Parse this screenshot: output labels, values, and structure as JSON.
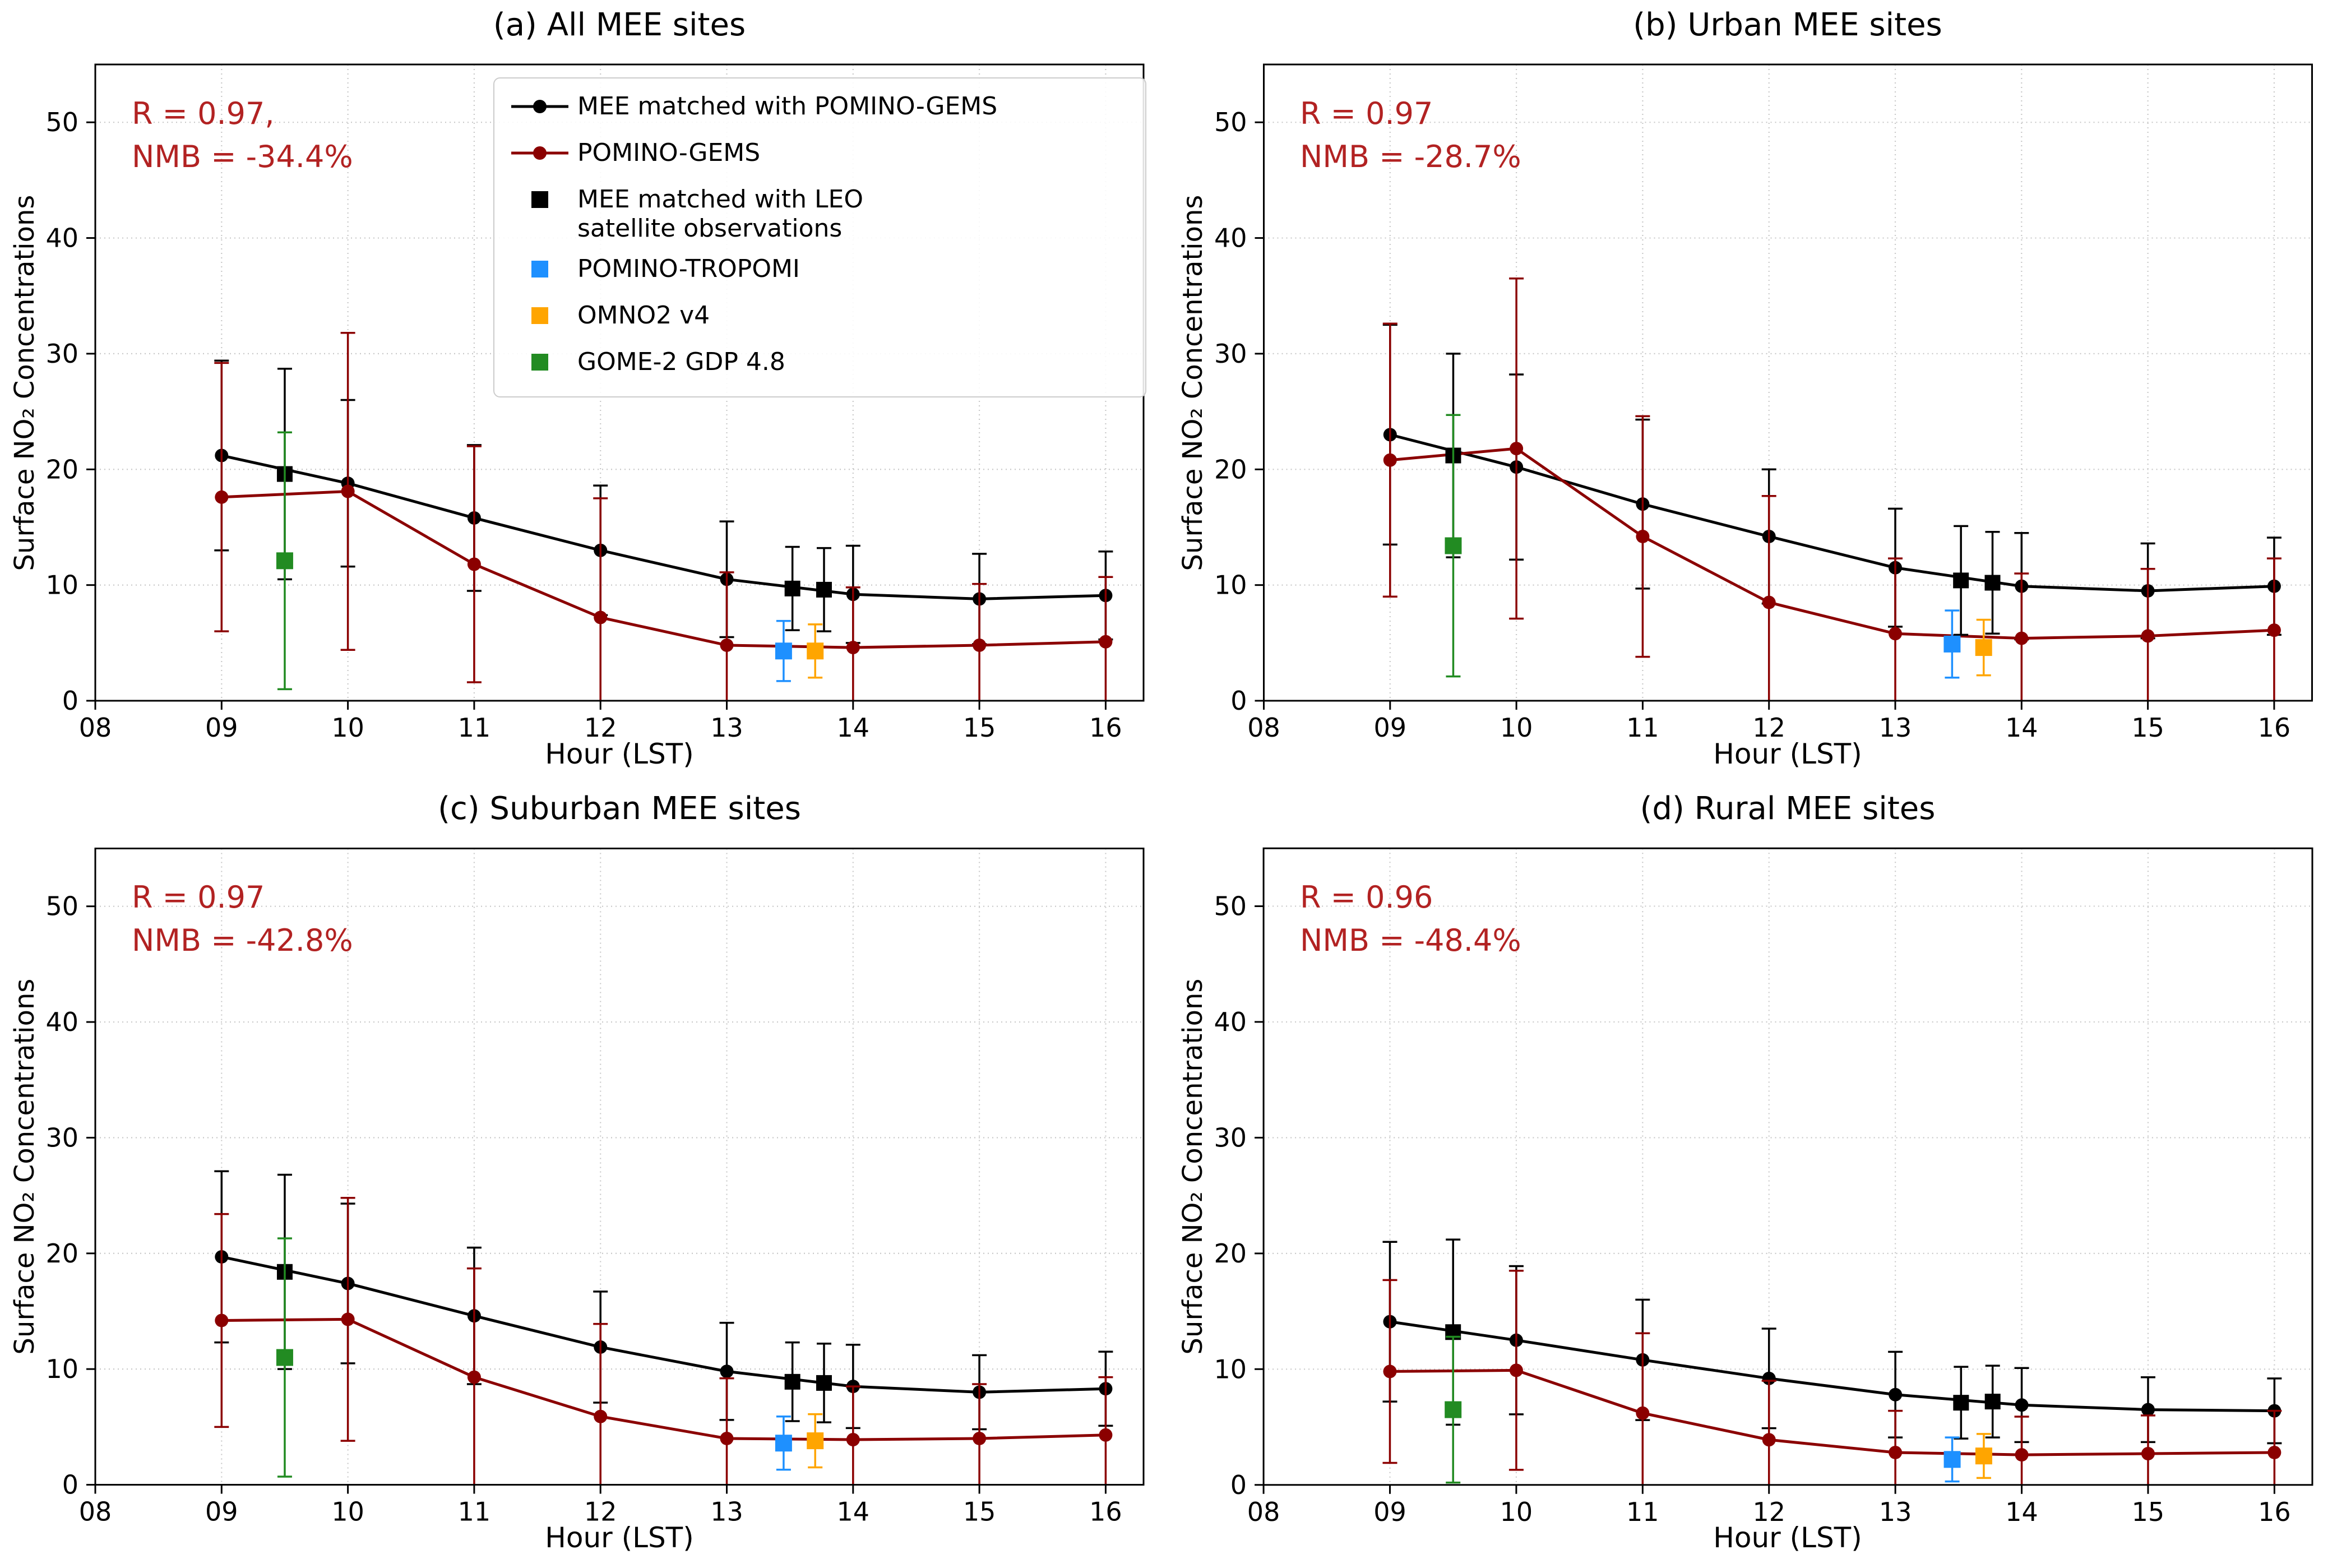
{
  "colors": {
    "annotation_red": "#B22222",
    "grid": "#C8C8C8",
    "axes": "#000000",
    "background": "#FFFFFF"
  },
  "axes": {
    "xlabel": "Hour (LST)",
    "ylabel": "Surface NO₂ Concentrations",
    "xlim": [
      8,
      16.3
    ],
    "ylim": [
      0,
      55
    ],
    "xtick_values": [
      8,
      9,
      10,
      11,
      12,
      13,
      14,
      15,
      16
    ],
    "xtick_labels": [
      "08",
      "09",
      "10",
      "11",
      "12",
      "13",
      "14",
      "15",
      "16"
    ],
    "ytick_values": [
      0,
      10,
      20,
      30,
      40,
      50
    ],
    "grid": true
  },
  "legend": {
    "position": "upper area of panel (a)",
    "items": [
      {
        "lines": [
          "MEE matched with POMINO-GEMS"
        ],
        "marker": "line-circle",
        "color": "#000000"
      },
      {
        "lines": [
          "POMINO-GEMS"
        ],
        "marker": "line-circle",
        "color": "#8B0000"
      },
      {
        "lines": [
          "MEE matched with LEO",
          "satellite observations"
        ],
        "marker": "square",
        "color": "#000000"
      },
      {
        "lines": [
          "POMINO-TROPOMI"
        ],
        "marker": "square",
        "color": "#1E90FF"
      },
      {
        "lines": [
          "OMNO2 v4"
        ],
        "marker": "square",
        "color": "#FFA500"
      },
      {
        "lines": [
          "GOME-2 GDP 4.8"
        ],
        "marker": "square",
        "color": "#228B22"
      }
    ]
  },
  "chart_data": [
    {
      "type": "line",
      "title": "(a) All MEE sites",
      "annotation": [
        "R = 0.97,",
        "NMB = -34.4%"
      ],
      "xlabel": "Hour (LST)",
      "ylabel": "Surface NO2 Concentrations",
      "xlim": [
        8,
        16.3
      ],
      "ylim": [
        0,
        55
      ],
      "series": [
        {
          "name": "MEE matched with POMINO-GEMS",
          "color": "#000000",
          "marker": "circle",
          "line": true,
          "msize": 12,
          "x": [
            9,
            10,
            11,
            12,
            13,
            14,
            15,
            16
          ],
          "y": [
            21.2,
            18.8,
            15.8,
            13.0,
            10.5,
            9.2,
            8.8,
            9.1
          ],
          "yerr": [
            8.2,
            7.2,
            6.3,
            5.6,
            5.0,
            4.2,
            3.9,
            3.8
          ]
        },
        {
          "name": "POMINO-GEMS",
          "color": "#8B0000",
          "marker": "circle",
          "line": true,
          "msize": 12,
          "x": [
            9,
            10,
            11,
            12,
            13,
            14,
            15,
            16
          ],
          "y": [
            17.6,
            18.1,
            11.8,
            7.2,
            4.8,
            4.6,
            4.8,
            5.1
          ],
          "yerr": [
            11.6,
            13.7,
            10.2,
            10.3,
            6.3,
            5.2,
            5.3,
            5.6
          ]
        },
        {
          "name": "MEE matched with LEO satellite observations",
          "color": "#000000",
          "marker": "square",
          "line": false,
          "msize": 14,
          "x": [
            9.5,
            13.52,
            13.77
          ],
          "y": [
            19.6,
            9.7,
            9.6
          ],
          "yerr": [
            9.1,
            3.6,
            3.6
          ]
        },
        {
          "name": "GOME-2 GDP 4.8",
          "color": "#228B22",
          "marker": "square",
          "line": false,
          "msize": 15,
          "x": [
            9.5
          ],
          "y": [
            12.1
          ],
          "yerr": [
            11.1
          ]
        },
        {
          "name": "POMINO-TROPOMI",
          "color": "#1E90FF",
          "marker": "square",
          "line": false,
          "msize": 15,
          "x": [
            13.45
          ],
          "y": [
            4.3
          ],
          "yerr": [
            2.6
          ]
        },
        {
          "name": "OMNO2 v4",
          "color": "#FFA500",
          "marker": "square",
          "line": false,
          "msize": 15,
          "x": [
            13.7
          ],
          "y": [
            4.3
          ],
          "yerr": [
            2.3
          ]
        }
      ]
    },
    {
      "type": "line",
      "title": "(b) Urban MEE sites",
      "annotation": [
        "R = 0.97",
        "NMB = -28.7%"
      ],
      "xlabel": "Hour (LST)",
      "ylabel": "Surface NO2 Concentrations",
      "xlim": [
        8,
        16.3
      ],
      "ylim": [
        0,
        55
      ],
      "series": [
        {
          "name": "MEE matched with POMINO-GEMS",
          "color": "#000000",
          "marker": "circle",
          "line": true,
          "msize": 12,
          "x": [
            9,
            10,
            11,
            12,
            13,
            14,
            15,
            16
          ],
          "y": [
            23.0,
            20.2,
            17.0,
            14.2,
            11.5,
            9.9,
            9.5,
            9.9
          ],
          "yerr": [
            9.5,
            8.0,
            7.3,
            5.8,
            5.1,
            4.6,
            4.1,
            4.2
          ]
        },
        {
          "name": "POMINO-GEMS",
          "color": "#8B0000",
          "marker": "circle",
          "line": true,
          "msize": 12,
          "x": [
            9,
            10,
            11,
            12,
            13,
            14,
            15,
            16
          ],
          "y": [
            20.8,
            21.8,
            14.2,
            8.5,
            5.8,
            5.4,
            5.6,
            6.1
          ],
          "yerr": [
            11.8,
            14.7,
            10.4,
            9.2,
            6.5,
            5.6,
            5.8,
            6.2
          ]
        },
        {
          "name": "MEE matched with LEO satellite observations",
          "color": "#000000",
          "marker": "square",
          "line": false,
          "msize": 14,
          "x": [
            9.5,
            13.52,
            13.77
          ],
          "y": [
            21.2,
            10.4,
            10.2
          ],
          "yerr": [
            8.8,
            4.7,
            4.4
          ]
        },
        {
          "name": "GOME-2 GDP 4.8",
          "color": "#228B22",
          "marker": "square",
          "line": false,
          "msize": 15,
          "x": [
            9.5
          ],
          "y": [
            13.4
          ],
          "yerr": [
            11.3
          ]
        },
        {
          "name": "POMINO-TROPOMI",
          "color": "#1E90FF",
          "marker": "square",
          "line": false,
          "msize": 15,
          "x": [
            13.45
          ],
          "y": [
            4.9
          ],
          "yerr": [
            2.9
          ]
        },
        {
          "name": "OMNO2 v4",
          "color": "#FFA500",
          "marker": "square",
          "line": false,
          "msize": 15,
          "x": [
            13.7
          ],
          "y": [
            4.6
          ],
          "yerr": [
            2.4
          ]
        }
      ]
    },
    {
      "type": "line",
      "title": "(c) Suburban MEE sites",
      "annotation": [
        "R = 0.97",
        "NMB = -42.8%"
      ],
      "xlabel": "Hour (LST)",
      "ylabel": "Surface NO2 Concentrations",
      "xlim": [
        8,
        16.3
      ],
      "ylim": [
        0,
        55
      ],
      "series": [
        {
          "name": "MEE matched with POMINO-GEMS",
          "color": "#000000",
          "marker": "circle",
          "line": true,
          "msize": 12,
          "x": [
            9,
            10,
            11,
            12,
            13,
            14,
            15,
            16
          ],
          "y": [
            19.7,
            17.4,
            14.6,
            11.9,
            9.8,
            8.5,
            8.0,
            8.3
          ],
          "yerr": [
            7.4,
            6.9,
            5.9,
            4.8,
            4.2,
            3.6,
            3.2,
            3.2
          ]
        },
        {
          "name": "POMINO-GEMS",
          "color": "#8B0000",
          "marker": "circle",
          "line": true,
          "msize": 12,
          "x": [
            9,
            10,
            11,
            12,
            13,
            14,
            15,
            16
          ],
          "y": [
            14.2,
            14.3,
            9.3,
            5.9,
            4.0,
            3.9,
            4.0,
            4.3
          ],
          "yerr": [
            9.2,
            10.5,
            9.4,
            8.0,
            5.2,
            4.6,
            4.7,
            5.0
          ]
        },
        {
          "name": "MEE matched with LEO satellite observations",
          "color": "#000000",
          "marker": "square",
          "line": false,
          "msize": 14,
          "x": [
            9.5,
            13.52,
            13.77
          ],
          "y": [
            18.4,
            8.9,
            8.8
          ],
          "yerr": [
            8.4,
            3.4,
            3.4
          ]
        },
        {
          "name": "GOME-2 GDP 4.8",
          "color": "#228B22",
          "marker": "square",
          "line": false,
          "msize": 15,
          "x": [
            9.5
          ],
          "y": [
            11.0
          ],
          "yerr": [
            10.3
          ]
        },
        {
          "name": "POMINO-TROPOMI",
          "color": "#1E90FF",
          "marker": "square",
          "line": false,
          "msize": 15,
          "x": [
            13.45
          ],
          "y": [
            3.6
          ],
          "yerr": [
            2.3
          ]
        },
        {
          "name": "OMNO2 v4",
          "color": "#FFA500",
          "marker": "square",
          "line": false,
          "msize": 15,
          "x": [
            13.7
          ],
          "y": [
            3.8
          ],
          "yerr": [
            2.3
          ]
        }
      ]
    },
    {
      "type": "line",
      "title": "(d) Rural MEE sites",
      "annotation": [
        "R = 0.96",
        "NMB = -48.4%"
      ],
      "xlabel": "Hour (LST)",
      "ylabel": "Surface NO2 Concentrations",
      "xlim": [
        8,
        16.3
      ],
      "ylim": [
        0,
        55
      ],
      "series": [
        {
          "name": "MEE matched with POMINO-GEMS",
          "color": "#000000",
          "marker": "circle",
          "line": true,
          "msize": 12,
          "x": [
            9,
            10,
            11,
            12,
            13,
            14,
            15,
            16
          ],
          "y": [
            14.1,
            12.5,
            10.8,
            9.2,
            7.8,
            6.9,
            6.5,
            6.4
          ],
          "yerr": [
            6.9,
            6.4,
            5.2,
            4.3,
            3.7,
            3.2,
            2.8,
            2.8
          ]
        },
        {
          "name": "POMINO-GEMS",
          "color": "#8B0000",
          "marker": "circle",
          "line": true,
          "msize": 12,
          "x": [
            9,
            10,
            11,
            12,
            13,
            14,
            15,
            16
          ],
          "y": [
            9.8,
            9.9,
            6.2,
            3.9,
            2.8,
            2.6,
            2.7,
            2.8
          ],
          "yerr": [
            7.9,
            8.6,
            6.9,
            5.1,
            3.6,
            3.3,
            3.3,
            3.6
          ]
        },
        {
          "name": "MEE matched with LEO satellite observations",
          "color": "#000000",
          "marker": "square",
          "line": false,
          "msize": 14,
          "x": [
            9.5,
            13.52,
            13.77
          ],
          "y": [
            13.2,
            7.1,
            7.2
          ],
          "yerr": [
            8.0,
            3.1,
            3.1
          ]
        },
        {
          "name": "GOME-2 GDP 4.8",
          "color": "#228B22",
          "marker": "square",
          "line": false,
          "msize": 15,
          "x": [
            9.5
          ],
          "y": [
            6.5
          ],
          "yerr": [
            6.3
          ]
        },
        {
          "name": "POMINO-TROPOMI",
          "color": "#1E90FF",
          "marker": "square",
          "line": false,
          "msize": 15,
          "x": [
            13.45
          ],
          "y": [
            2.2
          ],
          "yerr": [
            1.9
          ]
        },
        {
          "name": "OMNO2 v4",
          "color": "#FFA500",
          "marker": "square",
          "line": false,
          "msize": 15,
          "x": [
            13.7
          ],
          "y": [
            2.5
          ],
          "yerr": [
            1.9
          ]
        }
      ]
    }
  ]
}
